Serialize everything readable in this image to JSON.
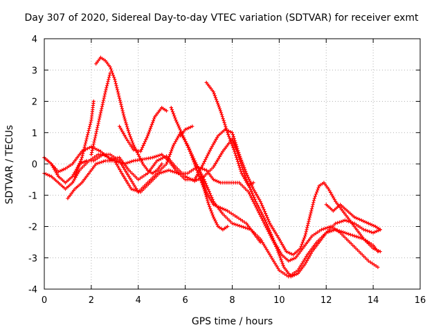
{
  "chart_data": {
    "type": "scatter",
    "title": "Day 307 of 2020, Sidereal Day-to-day VTEC variation (SDTVAR) for receiver exmt",
    "xlabel": "GPS time / hours",
    "ylabel": "SDTVAR / TECUs",
    "xlim": [
      0,
      16
    ],
    "ylim": [
      -4,
      4
    ],
    "xticks": [
      0,
      2,
      4,
      6,
      8,
      10,
      12,
      14,
      16
    ],
    "yticks": [
      -4,
      -3,
      -2,
      -1,
      0,
      1,
      2,
      3,
      4
    ],
    "grid": true,
    "marker": "+",
    "color": "#ff0000",
    "series": [
      {
        "points": [
          [
            0.0,
            0.2
          ],
          [
            0.3,
            0.0
          ],
          [
            0.6,
            -0.25
          ],
          [
            0.9,
            -0.15
          ],
          [
            1.2,
            0.0
          ],
          [
            1.6,
            0.4
          ],
          [
            2.0,
            0.55
          ],
          [
            2.4,
            0.4
          ],
          [
            2.8,
            0.15
          ],
          [
            3.2,
            0.2
          ],
          [
            3.6,
            -0.2
          ],
          [
            4.0,
            -0.5
          ],
          [
            4.4,
            -0.3
          ],
          [
            4.8,
            0.1
          ],
          [
            5.2,
            0.25
          ],
          [
            5.6,
            -0.1
          ],
          [
            6.0,
            -0.4
          ],
          [
            6.4,
            -0.55
          ],
          [
            6.8,
            -0.4
          ],
          [
            7.2,
            -0.1
          ],
          [
            7.6,
            0.4
          ],
          [
            8.0,
            0.8
          ],
          [
            8.2,
            0.4
          ],
          [
            8.6,
            -0.5
          ],
          [
            9.0,
            -1.2
          ],
          [
            9.4,
            -1.8
          ],
          [
            9.8,
            -2.5
          ],
          [
            10.1,
            -2.9
          ],
          [
            10.4,
            -3.1
          ],
          [
            10.7,
            -3.0
          ],
          [
            11.0,
            -2.7
          ],
          [
            11.4,
            -2.3
          ],
          [
            11.8,
            -2.1
          ],
          [
            12.2,
            -2.0
          ],
          [
            12.6,
            -2.2
          ],
          [
            13.0,
            -2.5
          ],
          [
            13.4,
            -2.8
          ],
          [
            13.8,
            -3.1
          ],
          [
            14.2,
            -3.3
          ]
        ]
      },
      {
        "points": [
          [
            0.0,
            -0.3
          ],
          [
            0.3,
            -0.4
          ],
          [
            0.6,
            -0.6
          ],
          [
            0.9,
            -0.8
          ],
          [
            1.2,
            -0.6
          ],
          [
            1.5,
            -0.2
          ],
          [
            1.9,
            0.1
          ],
          [
            2.3,
            0.3
          ],
          [
            2.8,
            0.3
          ],
          [
            3.2,
            0.1
          ],
          [
            3.6,
            -0.4
          ],
          [
            4.0,
            -0.9
          ],
          [
            4.4,
            -0.6
          ],
          [
            4.8,
            -0.3
          ],
          [
            5.2,
            0.0
          ],
          [
            5.5,
            0.6
          ],
          [
            5.8,
            1.0
          ],
          [
            6.1,
            0.6
          ],
          [
            6.4,
            0.1
          ],
          [
            6.8,
            -0.5
          ],
          [
            7.2,
            -1.2
          ],
          [
            7.6,
            -1.6
          ],
          [
            8.0,
            -1.9
          ],
          [
            8.4,
            -2.0
          ],
          [
            8.8,
            -2.1
          ],
          [
            9.2,
            -2.4
          ],
          [
            9.6,
            -2.9
          ],
          [
            10.0,
            -3.4
          ],
          [
            10.4,
            -3.6
          ],
          [
            10.8,
            -3.4
          ],
          [
            11.2,
            -2.9
          ],
          [
            11.6,
            -2.5
          ],
          [
            12.0,
            -2.2
          ],
          [
            12.4,
            -2.1
          ],
          [
            12.8,
            -2.2
          ],
          [
            13.2,
            -2.3
          ],
          [
            13.6,
            -2.4
          ],
          [
            14.0,
            -2.6
          ],
          [
            14.2,
            -2.8
          ]
        ]
      },
      {
        "points": [
          [
            0.0,
            0.2
          ],
          [
            0.3,
            0.0
          ],
          [
            0.6,
            -0.4
          ],
          [
            0.9,
            -0.6
          ],
          [
            1.2,
            -0.4
          ],
          [
            1.5,
            0.0
          ],
          [
            1.8,
            0.1
          ],
          [
            2.1,
            0.1
          ],
          [
            2.5,
            0.3
          ],
          [
            3.0,
            0.1
          ],
          [
            3.3,
            -0.3
          ],
          [
            3.7,
            -0.8
          ],
          [
            4.1,
            -0.9
          ],
          [
            4.5,
            -0.6
          ],
          [
            4.9,
            -0.3
          ],
          [
            5.3,
            -0.2
          ],
          [
            5.7,
            -0.3
          ],
          [
            6.1,
            -0.3
          ],
          [
            6.5,
            -0.1
          ],
          [
            6.9,
            -0.2
          ],
          [
            7.2,
            -0.5
          ],
          [
            7.5,
            -0.6
          ],
          [
            7.9,
            -0.6
          ],
          [
            8.3,
            -0.6
          ],
          [
            8.7,
            -0.9
          ],
          [
            9.1,
            -1.5
          ],
          [
            9.5,
            -2.1
          ],
          [
            9.9,
            -2.7
          ],
          [
            10.2,
            -3.3
          ],
          [
            10.5,
            -3.6
          ],
          [
            10.8,
            -3.5
          ],
          [
            11.1,
            -3.2
          ],
          [
            11.4,
            -2.8
          ],
          [
            11.7,
            -2.5
          ],
          [
            12.0,
            -2.2
          ],
          [
            12.4,
            -1.9
          ],
          [
            12.8,
            -1.8
          ],
          [
            13.2,
            -1.9
          ],
          [
            13.6,
            -2.1
          ],
          [
            14.0,
            -2.2
          ],
          [
            14.3,
            -2.1
          ]
        ]
      },
      {
        "points": [
          [
            1.0,
            -1.1
          ],
          [
            1.3,
            -0.8
          ],
          [
            1.6,
            -0.6
          ],
          [
            1.9,
            -0.3
          ],
          [
            2.2,
            0.0
          ],
          [
            2.6,
            0.1
          ],
          [
            3.0,
            0.1
          ],
          [
            3.4,
            0.0
          ],
          [
            3.8,
            0.1
          ],
          [
            4.2,
            0.15
          ],
          [
            4.6,
            0.2
          ],
          [
            5.0,
            0.3
          ],
          [
            5.3,
            0.1
          ],
          [
            5.6,
            -0.2
          ],
          [
            6.0,
            -0.5
          ],
          [
            6.4,
            -0.5
          ],
          [
            6.7,
            -0.1
          ],
          [
            7.1,
            0.5
          ],
          [
            7.4,
            0.9
          ],
          [
            7.7,
            1.1
          ],
          [
            8.0,
            1.0
          ],
          [
            8.3,
            0.3
          ],
          [
            8.6,
            -0.3
          ],
          [
            8.9,
            -0.8
          ],
          [
            9.2,
            -1.2
          ],
          [
            9.6,
            -1.9
          ],
          [
            10.0,
            -2.4
          ],
          [
            10.3,
            -2.8
          ],
          [
            10.6,
            -2.9
          ],
          [
            10.9,
            -2.7
          ],
          [
            11.1,
            -2.3
          ],
          [
            11.3,
            -1.7
          ],
          [
            11.5,
            -1.1
          ],
          [
            11.7,
            -0.7
          ],
          [
            11.9,
            -0.6
          ],
          [
            12.1,
            -0.8
          ],
          [
            12.4,
            -1.2
          ],
          [
            12.8,
            -1.6
          ],
          [
            13.2,
            -2.0
          ],
          [
            13.6,
            -2.4
          ],
          [
            14.0,
            -2.7
          ],
          [
            14.3,
            -2.8
          ]
        ]
      },
      {
        "points": [
          [
            1.3,
            -0.4
          ],
          [
            1.6,
            0.2
          ],
          [
            1.8,
            0.8
          ],
          [
            2.0,
            1.4
          ],
          [
            2.1,
            2.0
          ]
        ]
      },
      {
        "points": [
          [
            2.2,
            3.2
          ],
          [
            2.4,
            3.4
          ],
          [
            2.6,
            3.3
          ],
          [
            2.8,
            3.1
          ],
          [
            3.0,
            2.7
          ],
          [
            3.2,
            2.1
          ],
          [
            3.4,
            1.5
          ],
          [
            3.6,
            1.0
          ],
          [
            3.8,
            0.6
          ],
          [
            4.0,
            0.3
          ],
          [
            4.2,
            0.0
          ],
          [
            4.4,
            -0.2
          ],
          [
            4.6,
            -0.3
          ],
          [
            4.8,
            -0.2
          ],
          [
            5.0,
            0.0
          ]
        ]
      },
      {
        "points": [
          [
            2.0,
            0.3
          ],
          [
            2.3,
            1.3
          ],
          [
            2.6,
            2.3
          ],
          [
            2.8,
            2.9
          ]
        ]
      },
      {
        "points": [
          [
            3.2,
            1.2
          ],
          [
            3.5,
            0.8
          ],
          [
            3.8,
            0.45
          ],
          [
            4.1,
            0.4
          ],
          [
            4.4,
            0.9
          ],
          [
            4.7,
            1.5
          ],
          [
            5.0,
            1.8
          ],
          [
            5.2,
            1.7
          ]
        ]
      },
      {
        "points": [
          [
            5.4,
            1.8
          ],
          [
            5.6,
            1.4
          ],
          [
            5.9,
            0.9
          ],
          [
            6.2,
            0.4
          ],
          [
            6.4,
            0.0
          ],
          [
            6.6,
            -0.4
          ],
          [
            6.8,
            -0.8
          ],
          [
            7.0,
            -1.3
          ],
          [
            7.2,
            -1.7
          ],
          [
            7.4,
            -2.0
          ],
          [
            7.6,
            -2.1
          ],
          [
            7.8,
            -2.0
          ]
        ]
      },
      {
        "points": [
          [
            5.8,
            0.9
          ],
          [
            6.0,
            1.1
          ],
          [
            6.3,
            1.2
          ]
        ]
      },
      {
        "points": [
          [
            6.9,
            2.6
          ],
          [
            7.2,
            2.3
          ],
          [
            7.5,
            1.7
          ],
          [
            7.8,
            1.0
          ],
          [
            8.1,
            0.4
          ],
          [
            8.4,
            -0.3
          ],
          [
            8.7,
            -0.7
          ],
          [
            8.9,
            -0.6
          ]
        ]
      },
      {
        "points": [
          [
            6.6,
            -0.2
          ],
          [
            6.9,
            -0.9
          ],
          [
            7.2,
            -1.3
          ],
          [
            7.5,
            -1.4
          ],
          [
            7.8,
            -1.5
          ],
          [
            8.2,
            -1.7
          ],
          [
            8.6,
            -1.9
          ],
          [
            9.0,
            -2.3
          ],
          [
            9.2,
            -2.5
          ]
        ]
      },
      {
        "points": [
          [
            12.0,
            -1.3
          ],
          [
            12.3,
            -1.5
          ],
          [
            12.6,
            -1.3
          ],
          [
            12.9,
            -1.5
          ],
          [
            13.2,
            -1.7
          ],
          [
            13.5,
            -1.8
          ],
          [
            13.8,
            -1.9
          ],
          [
            14.1,
            -2.0
          ],
          [
            14.3,
            -2.1
          ]
        ]
      }
    ]
  }
}
